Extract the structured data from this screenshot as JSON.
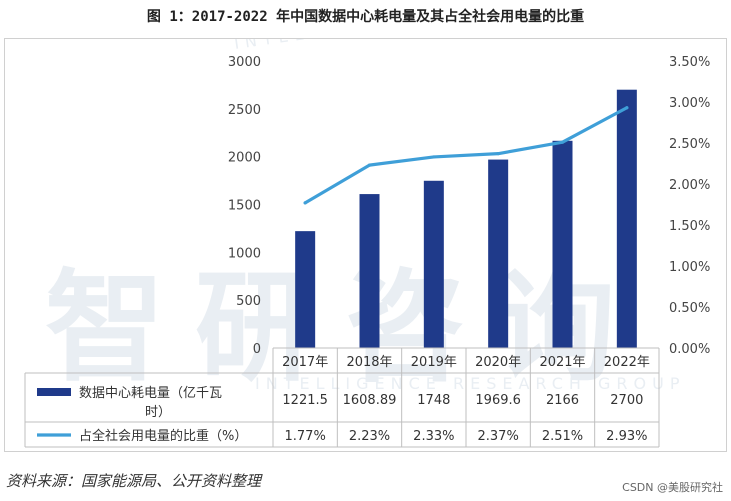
{
  "title": "图 1：2017-2022 年中国数据中心耗电量及其占全社会用电量的比重",
  "chart_data": {
    "type": "bar",
    "categories": [
      "2017年",
      "2018年",
      "2019年",
      "2020年",
      "2021年",
      "2022年"
    ],
    "series": [
      {
        "name": "数据中心耗电量（亿千瓦时）",
        "kind": "bar",
        "axis": "left",
        "color": "#1f3a8a",
        "values": [
          1221.5,
          1608.89,
          1748,
          1969.6,
          2166,
          2700
        ],
        "value_labels": [
          "1221.5",
          "1608.89",
          "1748",
          "1969.6",
          "2166",
          "2700"
        ]
      },
      {
        "name": "占全社会用电量的比重（%）",
        "kind": "line",
        "axis": "right",
        "color": "#3f9fd8",
        "values": [
          1.77,
          2.23,
          2.33,
          2.37,
          2.51,
          2.93
        ],
        "value_labels": [
          "1.77%",
          "2.23%",
          "2.33%",
          "2.37%",
          "2.51%",
          "2.93%"
        ]
      }
    ],
    "ylim": [
      0,
      3000
    ],
    "yticks": [
      "0",
      "500",
      "1000",
      "1500",
      "2000",
      "2500",
      "3000"
    ],
    "y2lim": [
      0,
      3.5
    ],
    "y2ticks": [
      "0.00%",
      "0.50%",
      "1.00%",
      "1.50%",
      "2.00%",
      "2.50%",
      "3.00%",
      "3.50%"
    ],
    "legend": "data-table-below",
    "grid": false
  },
  "source": "资料来源：国家能源局、公开资料整理",
  "credit": "CSDN @美股研究社",
  "watermark": {
    "text": "智研咨询",
    "subtext": "INTELLIGENCE RESEARCH GROUP",
    "color": "#e9eef3"
  }
}
